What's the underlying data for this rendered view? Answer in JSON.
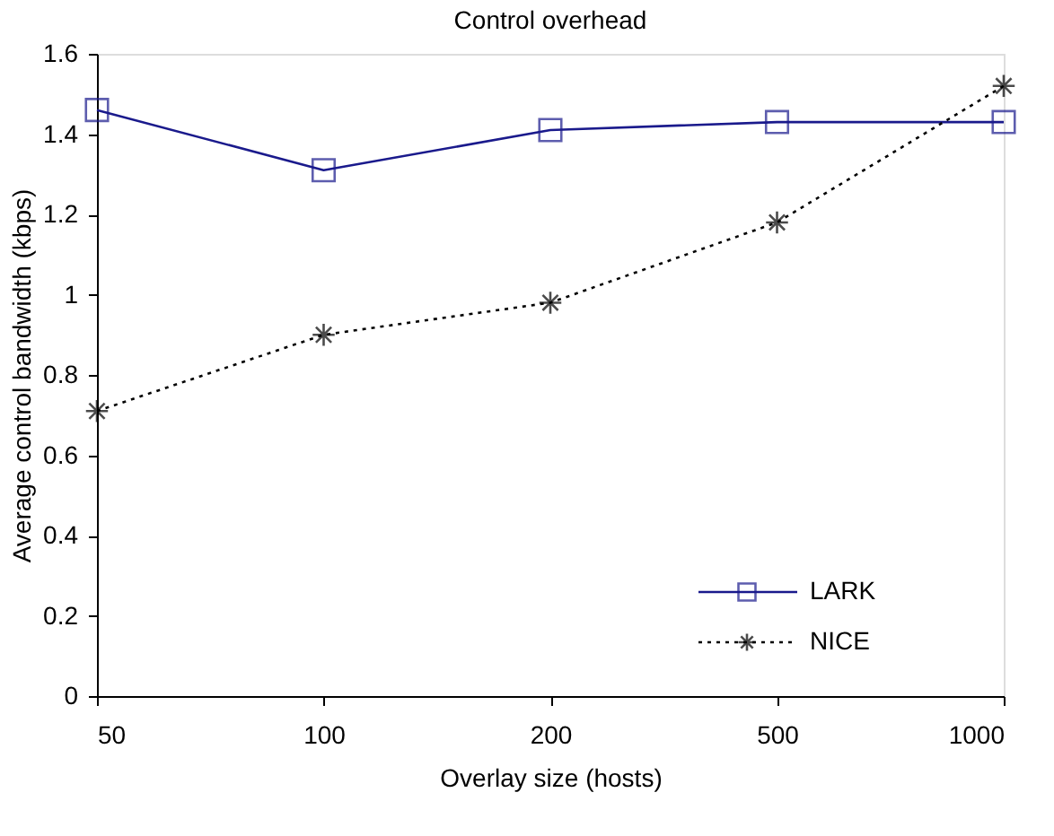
{
  "chart_data": {
    "type": "line",
    "title": "Control overhead",
    "xlabel": "Overlay size (hosts)",
    "ylabel": "Average control bandwidth (kbps)",
    "categories": [
      "50",
      "100",
      "200",
      "500",
      "1000"
    ],
    "series": [
      {
        "name": "LARK",
        "color": "#1a1a8c",
        "values": [
          1.46,
          1.31,
          1.41,
          1.43,
          1.43
        ],
        "marker": "square",
        "line_style": "solid"
      },
      {
        "name": "NICE",
        "color": "#000000",
        "values": [
          0.71,
          0.9,
          0.98,
          1.18,
          1.52
        ],
        "marker": "cross",
        "line_style": "dotted"
      }
    ],
    "ylim": [
      0,
      1.6
    ],
    "yticks": [
      0,
      0.2,
      0.4,
      0.6,
      0.8,
      1,
      1.2,
      1.4,
      1.6
    ],
    "grid": false,
    "legend": "bottom right"
  }
}
